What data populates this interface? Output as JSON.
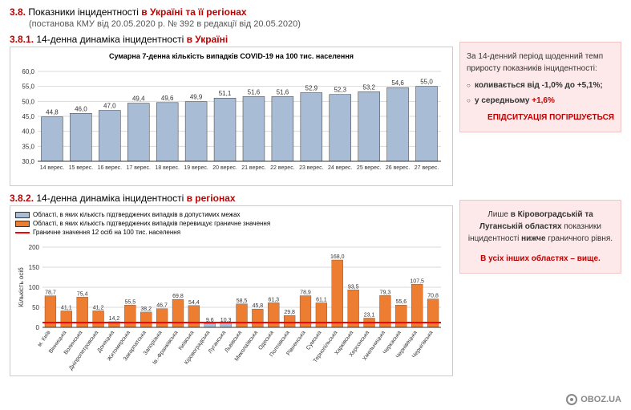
{
  "header": {
    "number": "3.8.",
    "title_plain": "Показники інцидентності ",
    "title_bold": "в Україні та її регіонах",
    "subtitle": "(постанова КМУ від 20.05.2020 р. № 392 в редакції від 20.05.2020)"
  },
  "section1": {
    "number": "3.8.1.",
    "title_plain": "14-денна динаміка інцидентності ",
    "title_bold": "в Україні"
  },
  "chart1": {
    "type": "bar",
    "title": "Сумарна 7-денна кількість випадків COVID-19 на 100 тис. населення",
    "categories": [
      "14 верес.",
      "15 верес.",
      "16 верес.",
      "17 верес.",
      "18 верес.",
      "19 верес.",
      "20 верес.",
      "21 верес.",
      "22 верес.",
      "23 верес.",
      "24 верес.",
      "25 верес.",
      "26 верес.",
      "27 верес."
    ],
    "values": [
      44.8,
      46.0,
      47.0,
      49.4,
      49.6,
      49.9,
      51.1,
      51.6,
      51.6,
      52.9,
      52.3,
      53.2,
      54.6,
      55.0
    ],
    "bar_color": "#a8bdd5",
    "bar_border": "#333",
    "ylim": [
      30,
      60
    ],
    "ytick_step": 5,
    "grid_color": "#d9d9d9",
    "label_fontsize": 8,
    "axis_fontsize": 8
  },
  "sidebar1": {
    "intro": "За 14-денний період щоденний темп приросту показників інцидентності:",
    "bullet1": "коливається від -1,0% до +5,1%;",
    "bullet2_plain": "у середньому ",
    "bullet2_value": "+1,6%",
    "warning": "ЕПІДСИТУАЦІЯ ПОГІРШУЄТЬСЯ"
  },
  "section2": {
    "number": "3.8.2.",
    "title_plain": "14-денна динаміка інцидентності ",
    "title_bold": "в регіонах"
  },
  "chart2": {
    "type": "bar",
    "legend_within": "Області, в яких кількість підтверджених випадків в допустимих межах",
    "legend_exceed": "Області, в яких кількість підтверджених випадків перевищує граничне значення",
    "legend_threshold": "Граничне значення 12 осіб на 100 тис. населення",
    "color_within": "#a8bdd5",
    "color_exceed": "#ed7d31",
    "color_threshold": "#ff0000",
    "ylabel": "Кількість осіб",
    "categories": [
      "м. Київ",
      "Вінницька",
      "Волинська",
      "Дніпропетровська",
      "Донецька",
      "Житомирська",
      "Закарпатська",
      "Запорізька",
      "Ів.-Франківська",
      "Київська",
      "Кіровоградська",
      "Луганська",
      "Львівська",
      "Миколаївська",
      "Одеська",
      "Полтавська",
      "Рівненська",
      "Сумська",
      "Тернопільська",
      "Харківська",
      "Херсонська",
      "Хмельницька",
      "Черкаська",
      "Чернівецька",
      "Чернігівська"
    ],
    "values": [
      78.7,
      41.1,
      75.4,
      41.2,
      14.2,
      55.5,
      38.2,
      46.7,
      69.8,
      54.4,
      9.6,
      10.3,
      58.5,
      45.8,
      61.3,
      29.8,
      78.9,
      61.1,
      168.0,
      93.5,
      23.1,
      79.3,
      55.6,
      107.5,
      70.8
    ],
    "within_idx": [
      10,
      11
    ],
    "threshold": 12,
    "ylim": [
      0,
      200
    ],
    "ytick_step": 50,
    "grid_color": "#d9d9d9",
    "label_fontsize": 7,
    "axis_fontsize": 8
  },
  "sidebar2": {
    "line1_a": "Лише ",
    "line1_b": "в Кіровоградській та Луганській областях",
    "line1_c": " показники інцидентності ",
    "line1_d": "нижче",
    "line1_e": " граничного рівня.",
    "line2": "В усіх інших областях – вище."
  },
  "watermark": "OBOZ.UA"
}
